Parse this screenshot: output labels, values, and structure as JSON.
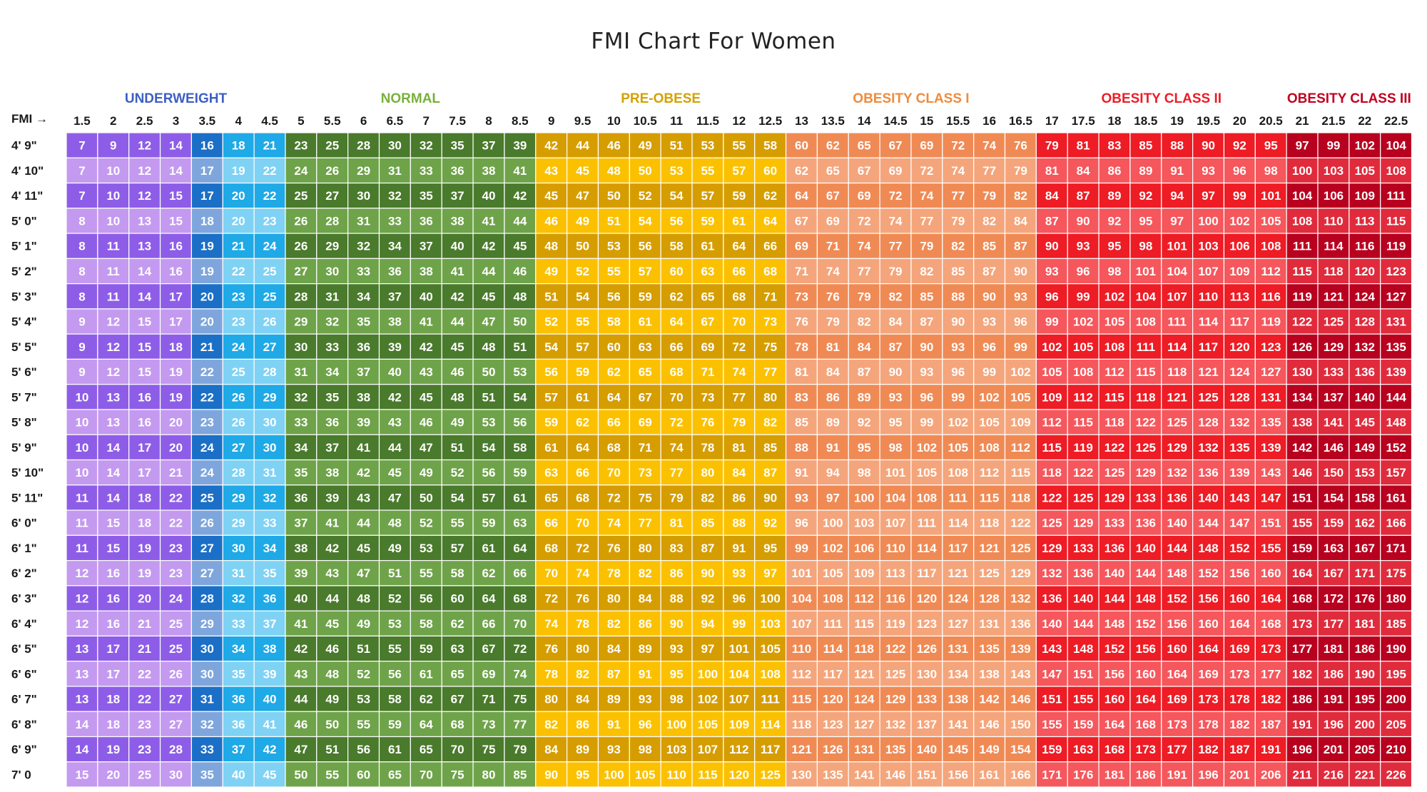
{
  "title": "FMI Chart For Women",
  "corner_label": "FMI →",
  "chart_data": {
    "type": "heatmap",
    "title": "FMI Chart For Women",
    "x_header": "FMI",
    "fmi": [
      1.5,
      2,
      2.5,
      3,
      3.5,
      4,
      4.5,
      5,
      5.5,
      6,
      6.5,
      7,
      7.5,
      8,
      8.5,
      9,
      9.5,
      10,
      10.5,
      11,
      11.5,
      12,
      12.5,
      13,
      13.5,
      14,
      14.5,
      15,
      15.5,
      16,
      16.5,
      17,
      17.5,
      18,
      18.5,
      19,
      19.5,
      20,
      20.5,
      21,
      21.5,
      22,
      22.5
    ],
    "heights": [
      "4' 9\"",
      "4' 10\"",
      "4' 11\"",
      "5' 0\"",
      "5' 1\"",
      "5' 2\"",
      "5' 3\"",
      "5' 4\"",
      "5' 5\"",
      "5' 6\"",
      "5' 7\"",
      "5' 8\"",
      "5' 9\"",
      "5' 10\"",
      "5' 11\"",
      "6' 0\"",
      "6' 1\"",
      "6' 2\"",
      "6' 3\"",
      "6' 4\"",
      "6' 5\"",
      "6' 6\"",
      "6' 7\"",
      "6' 8\"",
      "6' 9\"",
      "7' 0"
    ],
    "categories": [
      {
        "label": "UNDERWEIGHT",
        "start": 0,
        "span": 7,
        "color": "#3d5fc4"
      },
      {
        "label": "NORMAL",
        "start": 7,
        "span": 8,
        "color": "#78b13a"
      },
      {
        "label": "PRE-OBESE",
        "start": 15,
        "span": 8,
        "color": "#d4a100"
      },
      {
        "label": "OBESITY CLASS I",
        "start": 23,
        "span": 8,
        "color": "#ef8b3d"
      },
      {
        "label": "OBESITY CLASS II",
        "start": 31,
        "span": 8,
        "color": "#ee1c25"
      },
      {
        "label": "OBESITY CLASS III",
        "start": 39,
        "span": 4,
        "color": "#c00020"
      }
    ],
    "column_colors": [
      [
        "#8e5de8",
        "#c49af0"
      ],
      [
        "#8e5de8",
        "#c49af0"
      ],
      [
        "#8e5de8",
        "#c49af0"
      ],
      [
        "#8e5de8",
        "#c49af0"
      ],
      [
        "#1b6fc6",
        "#7fa6dc"
      ],
      [
        "#1fa9e6",
        "#7fd2f4"
      ],
      [
        "#1fa9e6",
        "#7fd2f4"
      ],
      [
        "#4a7a2c",
        "#6fa34a"
      ],
      [
        "#4a7a2c",
        "#6fa34a"
      ],
      [
        "#4a7a2c",
        "#6fa34a"
      ],
      [
        "#4a7a2c",
        "#6fa34a"
      ],
      [
        "#4a7a2c",
        "#6fa34a"
      ],
      [
        "#4a7a2c",
        "#6fa34a"
      ],
      [
        "#4a7a2c",
        "#6fa34a"
      ],
      [
        "#4a7a2c",
        "#6fa34a"
      ],
      [
        "#d69d00",
        "#fbc100"
      ],
      [
        "#d69d00",
        "#fbc100"
      ],
      [
        "#d69d00",
        "#fbc100"
      ],
      [
        "#d69d00",
        "#fbc100"
      ],
      [
        "#d69d00",
        "#fbc100"
      ],
      [
        "#d69d00",
        "#fbc100"
      ],
      [
        "#d69d00",
        "#fbc100"
      ],
      [
        "#d69d00",
        "#fbc100"
      ],
      [
        "#f08a54",
        "#f5a57b"
      ],
      [
        "#f08a54",
        "#f5a57b"
      ],
      [
        "#f08a54",
        "#f5a57b"
      ],
      [
        "#f08a54",
        "#f5a57b"
      ],
      [
        "#f08a54",
        "#f5a57b"
      ],
      [
        "#f08a54",
        "#f5a57b"
      ],
      [
        "#f08a54",
        "#f5a57b"
      ],
      [
        "#f08a54",
        "#f5a57b"
      ],
      [
        "#ee1c25",
        "#f5575c"
      ],
      [
        "#ee1c25",
        "#f5575c"
      ],
      [
        "#ee1c25",
        "#f5575c"
      ],
      [
        "#ee1c25",
        "#f5575c"
      ],
      [
        "#ee1c25",
        "#f5575c"
      ],
      [
        "#ee1c25",
        "#f5575c"
      ],
      [
        "#ee1c25",
        "#f5575c"
      ],
      [
        "#ee1c25",
        "#f5575c"
      ],
      [
        "#b8001f",
        "#e02b3c"
      ],
      [
        "#b8001f",
        "#e02b3c"
      ],
      [
        "#b8001f",
        "#e02b3c"
      ],
      [
        "#b8001f",
        "#e02b3c"
      ]
    ],
    "values": [
      [
        7,
        9,
        12,
        14,
        16,
        18,
        21,
        23,
        25,
        28,
        30,
        32,
        35,
        37,
        39,
        42,
        44,
        46,
        49,
        51,
        53,
        55,
        58,
        60,
        62,
        65,
        67,
        69,
        72,
        74,
        76,
        79,
        81,
        83,
        85,
        88,
        90,
        92,
        95,
        97,
        99,
        102,
        104
      ],
      [
        7,
        10,
        12,
        14,
        17,
        19,
        22,
        24,
        26,
        29,
        31,
        33,
        36,
        38,
        41,
        43,
        45,
        48,
        50,
        53,
        55,
        57,
        60,
        62,
        65,
        67,
        69,
        72,
        74,
        77,
        79,
        81,
        84,
        86,
        89,
        91,
        93,
        96,
        98,
        100,
        103,
        105,
        108
      ],
      [
        7,
        10,
        12,
        15,
        17,
        20,
        22,
        25,
        27,
        30,
        32,
        35,
        37,
        40,
        42,
        45,
        47,
        50,
        52,
        54,
        57,
        59,
        62,
        64,
        67,
        69,
        72,
        74,
        77,
        79,
        82,
        84,
        87,
        89,
        92,
        94,
        97,
        99,
        101,
        104,
        106,
        109,
        111
      ],
      [
        8,
        10,
        13,
        15,
        18,
        20,
        23,
        26,
        28,
        31,
        33,
        36,
        38,
        41,
        44,
        46,
        49,
        51,
        54,
        56,
        59,
        61,
        64,
        67,
        69,
        72,
        74,
        77,
        79,
        82,
        84,
        87,
        90,
        92,
        95,
        97,
        100,
        102,
        105,
        108,
        110,
        113,
        115
      ],
      [
        8,
        11,
        13,
        16,
        19,
        21,
        24,
        26,
        29,
        32,
        34,
        37,
        40,
        42,
        45,
        48,
        50,
        53,
        56,
        58,
        61,
        64,
        66,
        69,
        71,
        74,
        77,
        79,
        82,
        85,
        87,
        90,
        93,
        95,
        98,
        101,
        103,
        106,
        108,
        111,
        114,
        116,
        119
      ],
      [
        8,
        11,
        14,
        16,
        19,
        22,
        25,
        27,
        30,
        33,
        36,
        38,
        41,
        44,
        46,
        49,
        52,
        55,
        57,
        60,
        63,
        66,
        68,
        71,
        74,
        77,
        79,
        82,
        85,
        87,
        90,
        93,
        96,
        98,
        101,
        104,
        107,
        109,
        112,
        115,
        118,
        120,
        123
      ],
      [
        8,
        11,
        14,
        17,
        20,
        23,
        25,
        28,
        31,
        34,
        37,
        40,
        42,
        45,
        48,
        51,
        54,
        56,
        59,
        62,
        65,
        68,
        71,
        73,
        76,
        79,
        82,
        85,
        88,
        90,
        93,
        96,
        99,
        102,
        104,
        107,
        110,
        113,
        116,
        119,
        121,
        124,
        127
      ],
      [
        9,
        12,
        15,
        17,
        20,
        23,
        26,
        29,
        32,
        35,
        38,
        41,
        44,
        47,
        50,
        52,
        55,
        58,
        61,
        64,
        67,
        70,
        73,
        76,
        79,
        82,
        84,
        87,
        90,
        93,
        96,
        99,
        102,
        105,
        108,
        111,
        114,
        117,
        119,
        122,
        125,
        128,
        131
      ],
      [
        9,
        12,
        15,
        18,
        21,
        24,
        27,
        30,
        33,
        36,
        39,
        42,
        45,
        48,
        51,
        54,
        57,
        60,
        63,
        66,
        69,
        72,
        75,
        78,
        81,
        84,
        87,
        90,
        93,
        96,
        99,
        102,
        105,
        108,
        111,
        114,
        117,
        120,
        123,
        126,
        129,
        132,
        135
      ],
      [
        9,
        12,
        15,
        19,
        22,
        25,
        28,
        31,
        34,
        37,
        40,
        43,
        46,
        50,
        53,
        56,
        59,
        62,
        65,
        68,
        71,
        74,
        77,
        81,
        84,
        87,
        90,
        93,
        96,
        99,
        102,
        105,
        108,
        112,
        115,
        118,
        121,
        124,
        127,
        130,
        133,
        136,
        139
      ],
      [
        10,
        13,
        16,
        19,
        22,
        26,
        29,
        32,
        35,
        38,
        42,
        45,
        48,
        51,
        54,
        57,
        61,
        64,
        67,
        70,
        73,
        77,
        80,
        83,
        86,
        89,
        93,
        96,
        99,
        102,
        105,
        109,
        112,
        115,
        118,
        121,
        125,
        128,
        131,
        134,
        137,
        140,
        144
      ],
      [
        10,
        13,
        16,
        20,
        23,
        26,
        30,
        33,
        36,
        39,
        43,
        46,
        49,
        53,
        56,
        59,
        62,
        66,
        69,
        72,
        76,
        79,
        82,
        85,
        89,
        92,
        95,
        99,
        102,
        105,
        109,
        112,
        115,
        118,
        122,
        125,
        128,
        132,
        135,
        138,
        141,
        145,
        148
      ],
      [
        10,
        14,
        17,
        20,
        24,
        27,
        30,
        34,
        37,
        41,
        44,
        47,
        51,
        54,
        58,
        61,
        64,
        68,
        71,
        74,
        78,
        81,
        85,
        88,
        91,
        95,
        98,
        102,
        105,
        108,
        112,
        115,
        119,
        122,
        125,
        129,
        132,
        135,
        139,
        142,
        146,
        149,
        152
      ],
      [
        10,
        14,
        17,
        21,
        24,
        28,
        31,
        35,
        38,
        42,
        45,
        49,
        52,
        56,
        59,
        63,
        66,
        70,
        73,
        77,
        80,
        84,
        87,
        91,
        94,
        98,
        101,
        105,
        108,
        112,
        115,
        118,
        122,
        125,
        129,
        132,
        136,
        139,
        143,
        146,
        150,
        153,
        157
      ],
      [
        11,
        14,
        18,
        22,
        25,
        29,
        32,
        36,
        39,
        43,
        47,
        50,
        54,
        57,
        61,
        65,
        68,
        72,
        75,
        79,
        82,
        86,
        90,
        93,
        97,
        100,
        104,
        108,
        111,
        115,
        118,
        122,
        125,
        129,
        133,
        136,
        140,
        143,
        147,
        151,
        154,
        158,
        161
      ],
      [
        11,
        15,
        18,
        22,
        26,
        29,
        33,
        37,
        41,
        44,
        48,
        52,
        55,
        59,
        63,
        66,
        70,
        74,
        77,
        81,
        85,
        88,
        92,
        96,
        100,
        103,
        107,
        111,
        114,
        118,
        122,
        125,
        129,
        133,
        136,
        140,
        144,
        147,
        151,
        155,
        159,
        162,
        166
      ],
      [
        11,
        15,
        19,
        23,
        27,
        30,
        34,
        38,
        42,
        45,
        49,
        53,
        57,
        61,
        64,
        68,
        72,
        76,
        80,
        83,
        87,
        91,
        95,
        99,
        102,
        106,
        110,
        114,
        117,
        121,
        125,
        129,
        133,
        136,
        140,
        144,
        148,
        152,
        155,
        159,
        163,
        167,
        171
      ],
      [
        12,
        16,
        19,
        23,
        27,
        31,
        35,
        39,
        43,
        47,
        51,
        55,
        58,
        62,
        66,
        70,
        74,
        78,
        82,
        86,
        90,
        93,
        97,
        101,
        105,
        109,
        113,
        117,
        121,
        125,
        129,
        132,
        136,
        140,
        144,
        148,
        152,
        156,
        160,
        164,
        167,
        171,
        175
      ],
      [
        12,
        16,
        20,
        24,
        28,
        32,
        36,
        40,
        44,
        48,
        52,
        56,
        60,
        64,
        68,
        72,
        76,
        80,
        84,
        88,
        92,
        96,
        100,
        104,
        108,
        112,
        116,
        120,
        124,
        128,
        132,
        136,
        140,
        144,
        148,
        152,
        156,
        160,
        164,
        168,
        172,
        176,
        180
      ],
      [
        12,
        16,
        21,
        25,
        29,
        33,
        37,
        41,
        45,
        49,
        53,
        58,
        62,
        66,
        70,
        74,
        78,
        82,
        86,
        90,
        94,
        99,
        103,
        107,
        111,
        115,
        119,
        123,
        127,
        131,
        136,
        140,
        144,
        148,
        152,
        156,
        160,
        164,
        168,
        173,
        177,
        181,
        185
      ],
      [
        13,
        17,
        21,
        25,
        30,
        34,
        38,
        42,
        46,
        51,
        55,
        59,
        63,
        67,
        72,
        76,
        80,
        84,
        89,
        93,
        97,
        101,
        105,
        110,
        114,
        118,
        122,
        126,
        131,
        135,
        139,
        143,
        148,
        152,
        156,
        160,
        164,
        169,
        173,
        177,
        181,
        186,
        190
      ],
      [
        13,
        17,
        22,
        26,
        30,
        35,
        39,
        43,
        48,
        52,
        56,
        61,
        65,
        69,
        74,
        78,
        82,
        87,
        91,
        95,
        100,
        104,
        108,
        112,
        117,
        121,
        125,
        130,
        134,
        138,
        143,
        147,
        151,
        156,
        160,
        164,
        169,
        173,
        177,
        182,
        186,
        190,
        195
      ],
      [
        13,
        18,
        22,
        27,
        31,
        36,
        40,
        44,
        49,
        53,
        58,
        62,
        67,
        71,
        75,
        80,
        84,
        89,
        93,
        98,
        102,
        107,
        111,
        115,
        120,
        124,
        129,
        133,
        138,
        142,
        146,
        151,
        155,
        160,
        164,
        169,
        173,
        178,
        182,
        186,
        191,
        195,
        200
      ],
      [
        14,
        18,
        23,
        27,
        32,
        36,
        41,
        46,
        50,
        55,
        59,
        64,
        68,
        73,
        77,
        82,
        86,
        91,
        96,
        100,
        105,
        109,
        114,
        118,
        123,
        127,
        132,
        137,
        141,
        146,
        150,
        155,
        159,
        164,
        168,
        173,
        178,
        182,
        187,
        191,
        196,
        200,
        205
      ],
      [
        14,
        19,
        23,
        28,
        33,
        37,
        42,
        47,
        51,
        56,
        61,
        65,
        70,
        75,
        79,
        84,
        89,
        93,
        98,
        103,
        107,
        112,
        117,
        121,
        126,
        131,
        135,
        140,
        145,
        149,
        154,
        159,
        163,
        168,
        173,
        177,
        182,
        187,
        191,
        196,
        201,
        205,
        210
      ],
      [
        15,
        20,
        25,
        30,
        35,
        40,
        45,
        50,
        55,
        60,
        65,
        70,
        75,
        80,
        85,
        90,
        95,
        100,
        105,
        110,
        115,
        120,
        125,
        130,
        135,
        141,
        146,
        151,
        156,
        161,
        166,
        171,
        176,
        181,
        186,
        191,
        196,
        201,
        206,
        211,
        216,
        221,
        226
      ]
    ]
  }
}
